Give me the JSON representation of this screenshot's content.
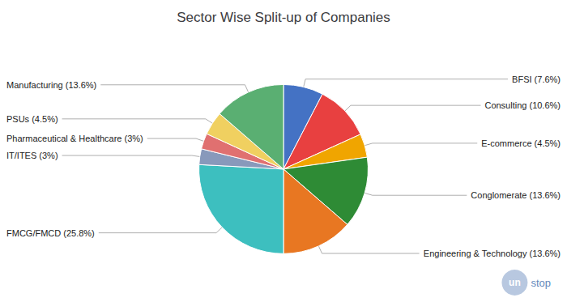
{
  "chart_data": {
    "type": "pie",
    "title": "Sector Wise Split-up of Companies",
    "categories": [
      "BFSI",
      "Consulting",
      "E-commerce",
      "Conglomerate",
      "Engineering & Technology",
      "FMCG/FMCD",
      "IT/ITES",
      "Pharmaceutical & Healthcare",
      "PSUs",
      "Manufacturing"
    ],
    "values": [
      7.6,
      10.6,
      4.5,
      13.6,
      13.6,
      25.8,
      3.0,
      3.0,
      4.5,
      13.6
    ],
    "value_labels": [
      "BFSI (7.6%)",
      "Consulting (10.6%)",
      "E-commerce (4.5%)",
      "Conglomerate (13.6%)",
      "Engineering & Technology (13.6%)",
      "FMCG/FMCD (25.8%)",
      "IT/ITES (3%)",
      "Pharmaceutical & Healthcare (3%)",
      "PSUs (4.5%)",
      "Manufacturing (13.6%)"
    ],
    "colors": [
      "#4472C4",
      "#E84040",
      "#F0A500",
      "#2E8B35",
      "#E87722",
      "#3DBFBF",
      "#8899BB",
      "#E07070",
      "#F0D060",
      "#5AAF72"
    ],
    "annotations": [
      "un",
      "stop"
    ]
  }
}
